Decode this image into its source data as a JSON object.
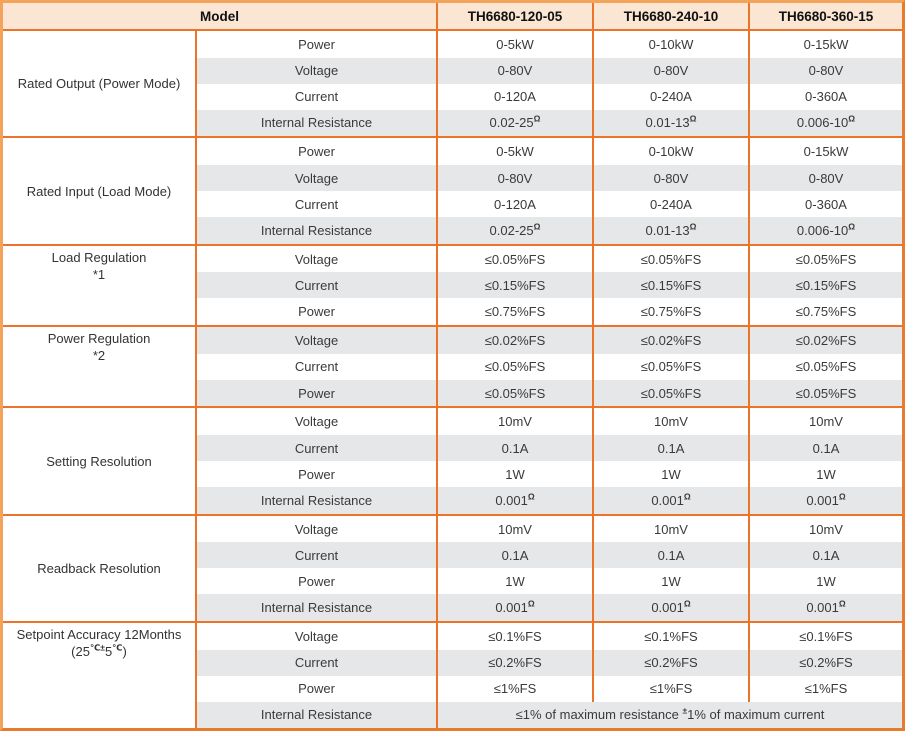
{
  "table": {
    "header": {
      "model_label": "Model",
      "models": [
        "TH6680-120-05",
        "TH6680-240-10",
        "TH6680-360-15"
      ]
    },
    "groups": [
      {
        "label_lines": [
          "Rated Output (Power Mode)"
        ],
        "label_valign": "middle",
        "rows": [
          {
            "param": "Power",
            "values": [
              "0-5kW",
              "0-10kW",
              "0-15kW"
            ]
          },
          {
            "param": "Voltage",
            "values": [
              "0-80V",
              "0-80V",
              "0-80V"
            ]
          },
          {
            "param": "Current",
            "values": [
              "0-120A",
              "0-240A",
              "0-360A"
            ]
          },
          {
            "param": "Internal Resistance",
            "values": [
              "0.02-25^{Ω}",
              "0.01-13^{Ω}",
              "0.006-10^{Ω}"
            ]
          }
        ]
      },
      {
        "label_lines": [
          "Rated Input (Load Mode)"
        ],
        "label_valign": "middle",
        "rows": [
          {
            "param": "Power",
            "values": [
              "0-5kW",
              "0-10kW",
              "0-15kW"
            ]
          },
          {
            "param": "Voltage",
            "values": [
              "0-80V",
              "0-80V",
              "0-80V"
            ]
          },
          {
            "param": "Current",
            "values": [
              "0-120A",
              "0-240A",
              "0-360A"
            ]
          },
          {
            "param": "Internal Resistance",
            "values": [
              "0.02-25^{Ω}",
              "0.01-13^{Ω}",
              "0.006-10^{Ω}"
            ]
          }
        ]
      },
      {
        "label_lines": [
          "Load Regulation",
          "*1"
        ],
        "label_valign": "top",
        "rows": [
          {
            "param": "Voltage",
            "values": [
              "≤0.05%FS",
              "≤0.05%FS",
              "≤0.05%FS"
            ]
          },
          {
            "param": "Current",
            "values": [
              "≤0.15%FS",
              "≤0.15%FS",
              "≤0.15%FS"
            ]
          },
          {
            "param": "Power",
            "values": [
              "≤0.75%FS",
              "≤0.75%FS",
              "≤0.75%FS"
            ]
          }
        ]
      },
      {
        "label_lines": [
          "Power Regulation",
          "*2"
        ],
        "label_valign": "top",
        "rows": [
          {
            "param": "Voltage",
            "values": [
              "≤0.02%FS",
              "≤0.02%FS",
              "≤0.02%FS"
            ]
          },
          {
            "param": "Current",
            "values": [
              "≤0.05%FS",
              "≤0.05%FS",
              "≤0.05%FS"
            ]
          },
          {
            "param": "Power",
            "values": [
              "≤0.05%FS",
              "≤0.05%FS",
              "≤0.05%FS"
            ]
          }
        ]
      },
      {
        "label_lines": [
          "Setting Resolution"
        ],
        "label_valign": "middle",
        "rows": [
          {
            "param": "Voltage",
            "values": [
              "10mV",
              "10mV",
              "10mV"
            ]
          },
          {
            "param": "Current",
            "values": [
              "0.1A",
              "0.1A",
              "0.1A"
            ]
          },
          {
            "param": "Power",
            "values": [
              "1W",
              "1W",
              "1W"
            ]
          },
          {
            "param": "Internal Resistance",
            "values": [
              "0.001^{Ω}",
              "0.001^{Ω}",
              "0.001^{Ω}"
            ]
          }
        ]
      },
      {
        "label_lines": [
          "Readback Resolution"
        ],
        "label_valign": "middle",
        "rows": [
          {
            "param": "Voltage",
            "values": [
              "10mV",
              "10mV",
              "10mV"
            ]
          },
          {
            "param": "Current",
            "values": [
              "0.1A",
              "0.1A",
              "0.1A"
            ]
          },
          {
            "param": "Power",
            "values": [
              "1W",
              "1W",
              "1W"
            ]
          },
          {
            "param": "Internal Resistance",
            "values": [
              "0.001^{Ω}",
              "0.001^{Ω}",
              "0.001^{Ω}"
            ]
          }
        ]
      },
      {
        "label_lines": [
          "Setpoint Accuracy 12Months",
          "(25^{℃±}5^{℃})"
        ],
        "label_valign": "top",
        "rows": [
          {
            "param": "Voltage",
            "values": [
              "≤0.1%FS",
              "≤0.1%FS",
              "≤0.1%FS"
            ]
          },
          {
            "param": "Current",
            "values": [
              "≤0.2%FS",
              "≤0.2%FS",
              "≤0.2%FS"
            ]
          },
          {
            "param": "Power",
            "values": [
              "≤1%FS",
              "≤1%FS",
              "≤1%FS"
            ]
          },
          {
            "param": "Internal Resistance",
            "values": [
              "≤1% of maximum resistance ^{±}1% of maximum current"
            ],
            "colspan": 3
          }
        ]
      }
    ]
  },
  "colors": {
    "border_orange": "#EC7428",
    "outer_border_light": "#F4A35B",
    "outer_border_dark": "#E87C2E",
    "header_bg": "#FBE5D3",
    "row_alt_bg": "#E6E7E8",
    "row_bg": "#FFFFFF",
    "text": "#3A3A3A",
    "header_text": "#111111"
  }
}
